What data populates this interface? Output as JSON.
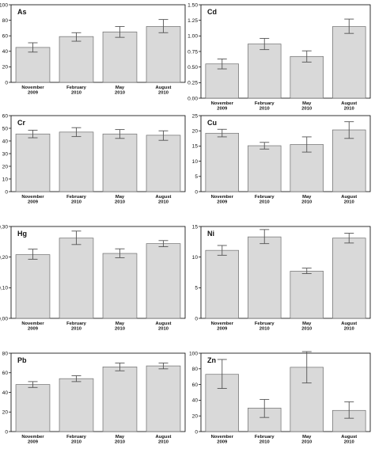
{
  "chart_data": [
    {
      "type": "bar",
      "title": "As",
      "categories": [
        "November 2009",
        "February 2010",
        "May 2010",
        "August 2010"
      ],
      "values": [
        45,
        59,
        65,
        72
      ],
      "error": [
        [
          39,
          51
        ],
        [
          53,
          64
        ],
        [
          58,
          72
        ],
        [
          64,
          81
        ]
      ],
      "yticks": [
        "0",
        "20",
        "40",
        "60",
        "80",
        "100"
      ],
      "ylim": [
        0,
        100
      ],
      "xlabel": "",
      "ylabel": "",
      "grid": false,
      "legend": "none"
    },
    {
      "type": "bar",
      "title": "Cd",
      "categories": [
        "November 2009",
        "February 2010",
        "May 2010",
        "August 2010"
      ],
      "values": [
        0.55,
        0.87,
        0.67,
        1.15
      ],
      "error": [
        [
          0.47,
          0.63
        ],
        [
          0.78,
          0.96
        ],
        [
          0.58,
          0.76
        ],
        [
          1.04,
          1.27
        ]
      ],
      "yticks": [
        "0.00",
        "0.25",
        "0.50",
        "0.75",
        "1.00",
        "1.25",
        "1.50"
      ],
      "ylim": [
        0,
        1.5
      ],
      "xlabel": "",
      "ylabel": "",
      "grid": false,
      "legend": "none"
    },
    {
      "type": "bar",
      "title": "Cr",
      "categories": [
        "November 2009",
        "February 2010",
        "May 2010",
        "August 2010"
      ],
      "values": [
        45.5,
        47,
        45.5,
        44.5
      ],
      "error": [
        [
          42.5,
          48.5
        ],
        [
          43.5,
          50.5
        ],
        [
          42,
          49
        ],
        [
          40.5,
          48
        ]
      ],
      "yticks": [
        "0",
        "10",
        "20",
        "30",
        "40",
        "50",
        "60"
      ],
      "ylim": [
        0,
        60
      ],
      "xlabel": "",
      "ylabel": "",
      "grid": false,
      "legend": "none"
    },
    {
      "type": "bar",
      "title": "Cu",
      "categories": [
        "November 2009",
        "February 2010",
        "May 2010",
        "August 2010"
      ],
      "values": [
        19.2,
        15.1,
        15.5,
        20.3
      ],
      "error": [
        [
          18,
          20.5
        ],
        [
          14,
          16.2
        ],
        [
          13,
          18
        ],
        [
          17.5,
          23
        ]
      ],
      "yticks": [
        "0",
        "5",
        "10",
        "15",
        "20",
        "25"
      ],
      "ylim": [
        0,
        25
      ],
      "xlabel": "",
      "ylabel": "",
      "grid": false,
      "legend": "none"
    },
    {
      "type": "bar",
      "title": "Hg",
      "categories": [
        "November 2009",
        "February 2010",
        "May 2010",
        "August 2010"
      ],
      "values": [
        0.208,
        0.262,
        0.212,
        0.244
      ],
      "error": [
        [
          0.193,
          0.226
        ],
        [
          0.241,
          0.285
        ],
        [
          0.198,
          0.227
        ],
        [
          0.234,
          0.254
        ]
      ],
      "yticks": [
        "0,00",
        "0,10",
        "0,20",
        "0,30"
      ],
      "ylim": [
        0,
        0.3
      ],
      "xlabel": "",
      "ylabel": "",
      "grid": false,
      "legend": "none"
    },
    {
      "type": "bar",
      "title": "Ni",
      "categories": [
        "November 2009",
        "February 2010",
        "May 2010",
        "August 2010"
      ],
      "values": [
        11.1,
        13.3,
        7.7,
        13.1
      ],
      "error": [
        [
          10.3,
          11.9
        ],
        [
          12.2,
          14.5
        ],
        [
          7.3,
          8.2
        ],
        [
          12.3,
          13.9
        ]
      ],
      "yticks": [
        "0",
        "5",
        "10",
        "15"
      ],
      "ylim": [
        0,
        15
      ],
      "xlabel": "",
      "ylabel": "",
      "grid": false,
      "legend": "none"
    },
    {
      "type": "bar",
      "title": "Pb",
      "categories": [
        "November 2009",
        "February 2010",
        "May 2010",
        "August 2010"
      ],
      "values": [
        48,
        54,
        66,
        67
      ],
      "error": [
        [
          45,
          51
        ],
        [
          51,
          57
        ],
        [
          62,
          70
        ],
        [
          64,
          70
        ]
      ],
      "yticks": [
        "0",
        "20",
        "40",
        "60",
        "80"
      ],
      "ylim": [
        0,
        80
      ],
      "xlabel": "",
      "ylabel": "",
      "grid": false,
      "legend": "none"
    },
    {
      "type": "bar",
      "title": "Zn",
      "categories": [
        "November 2009",
        "February 2010",
        "May 2010",
        "August 2010"
      ],
      "values": [
        73,
        30,
        82,
        27
      ],
      "error": [
        [
          55,
          92
        ],
        [
          18,
          41
        ],
        [
          62,
          102
        ],
        [
          17,
          38
        ]
      ],
      "yticks": [
        "0",
        "20",
        "40",
        "60",
        "80",
        "100"
      ],
      "ylim": [
        0,
        100
      ],
      "xlabel": "",
      "ylabel": "",
      "grid": false,
      "legend": "none"
    }
  ]
}
